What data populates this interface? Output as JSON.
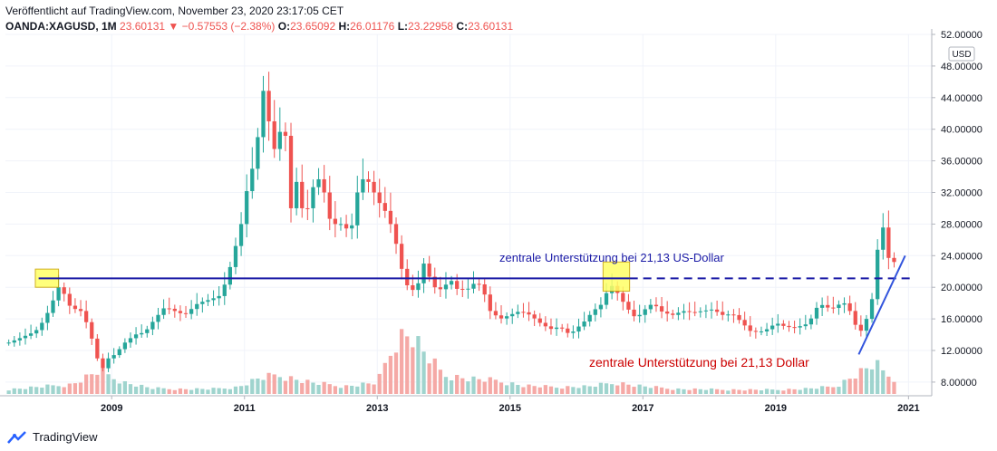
{
  "header": {
    "published": "Veröffentlicht auf TradingView.com, November 23, 2020 23:17:05 CET",
    "symbol": "OANDA:XAGUSD, 1M",
    "last": "23.60131",
    "change": "−0.57553 (−2.38%)",
    "o_label": "O:",
    "o_value": "23.65092",
    "h_label": "H:",
    "h_value": "26.01176",
    "l_label": "L:",
    "l_value": "23.22958",
    "c_label": "C:",
    "c_value": "23.60131"
  },
  "footer": {
    "brand": "TradingView",
    "logo_icon": "tradingview-logo-icon"
  },
  "colors": {
    "up": "#26a69a",
    "down": "#ef5350",
    "up_vol": "#9fd4ce",
    "down_vol": "#f5a9a6",
    "line": "#1a1aa6",
    "highlight": "#ffff66",
    "annotation_red": "#cc0000"
  },
  "chart_data": {
    "type": "candlestick",
    "interval": "1M",
    "symbol": "OANDA:XAGUSD",
    "currency": "USD",
    "ylim": [
      6.5,
      52
    ],
    "y_ticks": [
      "8.00000",
      "12.00000",
      "16.00000",
      "20.00000",
      "24.00000",
      "28.00000",
      "32.00000",
      "36.00000",
      "40.00000",
      "44.00000",
      "48.00000",
      "52.00000"
    ],
    "x_ticks": [
      "2009",
      "2011",
      "2013",
      "2015",
      "2017",
      "2019",
      "2021"
    ],
    "x_range": [
      2007.4,
      2021.35
    ],
    "price_path": [
      [
        2007.45,
        13
      ],
      [
        2007.6,
        13.5
      ],
      [
        2007.85,
        14.4
      ],
      [
        2007.95,
        15.5
      ],
      [
        2008.05,
        17
      ],
      [
        2008.2,
        20
      ],
      [
        2008.3,
        19
      ],
      [
        2008.4,
        17
      ],
      [
        2008.5,
        17.5
      ],
      [
        2008.6,
        16
      ],
      [
        2008.7,
        13.5
      ],
      [
        2008.8,
        10.5
      ],
      [
        2008.85,
        9.5
      ],
      [
        2008.95,
        11
      ],
      [
        2009.05,
        11.5
      ],
      [
        2009.2,
        13
      ],
      [
        2009.35,
        14
      ],
      [
        2009.5,
        14.3
      ],
      [
        2009.65,
        16
      ],
      [
        2009.8,
        17.5
      ],
      [
        2009.95,
        17
      ],
      [
        2010.1,
        16.5
      ],
      [
        2010.3,
        18
      ],
      [
        2010.5,
        18.5
      ],
      [
        2010.65,
        19
      ],
      [
        2010.8,
        23
      ],
      [
        2010.95,
        28
      ],
      [
        2011.05,
        33
      ],
      [
        2011.15,
        36
      ],
      [
        2011.25,
        42
      ],
      [
        2011.32,
        48
      ],
      [
        2011.4,
        36
      ],
      [
        2011.5,
        39
      ],
      [
        2011.6,
        41
      ],
      [
        2011.7,
        30
      ],
      [
        2011.8,
        34
      ],
      [
        2011.9,
        28
      ],
      [
        2012.0,
        32
      ],
      [
        2012.1,
        34
      ],
      [
        2012.2,
        32
      ],
      [
        2012.3,
        28
      ],
      [
        2012.45,
        28
      ],
      [
        2012.6,
        27
      ],
      [
        2012.7,
        32
      ],
      [
        2012.8,
        34
      ],
      [
        2012.9,
        33
      ],
      [
        2013.0,
        31
      ],
      [
        2013.1,
        30
      ],
      [
        2013.2,
        28
      ],
      [
        2013.3,
        25
      ],
      [
        2013.4,
        21
      ],
      [
        2013.5,
        19.5
      ],
      [
        2013.6,
        20
      ],
      [
        2013.7,
        23
      ],
      [
        2013.8,
        21
      ],
      [
        2013.9,
        19.5
      ],
      [
        2014.0,
        20
      ],
      [
        2014.1,
        21
      ],
      [
        2014.2,
        19.8
      ],
      [
        2014.35,
        19.7
      ],
      [
        2014.5,
        20.8
      ],
      [
        2014.6,
        19.5
      ],
      [
        2014.7,
        17
      ],
      [
        2014.85,
        16
      ],
      [
        2015.0,
        16.5
      ],
      [
        2015.15,
        17
      ],
      [
        2015.3,
        16.5
      ],
      [
        2015.45,
        15.5
      ],
      [
        2015.6,
        14.7
      ],
      [
        2015.75,
        15
      ],
      [
        2015.9,
        14
      ],
      [
        2016.0,
        14.8
      ],
      [
        2016.1,
        15.5
      ],
      [
        2016.25,
        17
      ],
      [
        2016.4,
        18
      ],
      [
        2016.5,
        20.5
      ],
      [
        2016.6,
        19.5
      ],
      [
        2016.75,
        17.5
      ],
      [
        2016.9,
        16
      ],
      [
        2017.0,
        17
      ],
      [
        2017.15,
        18
      ],
      [
        2017.3,
        16.8
      ],
      [
        2017.45,
        16.5
      ],
      [
        2017.6,
        17
      ],
      [
        2017.75,
        16.8
      ],
      [
        2017.9,
        17
      ],
      [
        2018.05,
        17.2
      ],
      [
        2018.2,
        16.5
      ],
      [
        2018.35,
        16.6
      ],
      [
        2018.5,
        15.5
      ],
      [
        2018.6,
        14.5
      ],
      [
        2018.75,
        14.3
      ],
      [
        2018.9,
        14.8
      ],
      [
        2019.0,
        15.5
      ],
      [
        2019.15,
        15
      ],
      [
        2019.3,
        14.9
      ],
      [
        2019.45,
        15.3
      ],
      [
        2019.55,
        16.2
      ],
      [
        2019.65,
        18
      ],
      [
        2019.75,
        17.5
      ],
      [
        2019.85,
        17.3
      ],
      [
        2019.95,
        17.8
      ],
      [
        2020.05,
        18
      ],
      [
        2020.15,
        16.5
      ],
      [
        2020.25,
        14
      ],
      [
        2020.35,
        15.5
      ],
      [
        2020.45,
        18.5
      ],
      [
        2020.52,
        24
      ],
      [
        2020.6,
        28.5
      ],
      [
        2020.68,
        24
      ],
      [
        2020.75,
        23
      ],
      [
        2020.85,
        23.6
      ]
    ],
    "volume_path": [
      [
        2007.45,
        1.2
      ],
      [
        2008.0,
        2
      ],
      [
        2008.4,
        2.5
      ],
      [
        2008.8,
        6
      ],
      [
        2009.2,
        3
      ],
      [
        2009.6,
        1.5
      ],
      [
        2010.0,
        1.3
      ],
      [
        2010.5,
        1.3
      ],
      [
        2010.9,
        1.8
      ],
      [
        2011.2,
        4
      ],
      [
        2011.5,
        5
      ],
      [
        2012.0,
        3
      ],
      [
        2012.5,
        2
      ],
      [
        2013.0,
        3
      ],
      [
        2013.3,
        15
      ],
      [
        2013.5,
        16
      ],
      [
        2013.7,
        11
      ],
      [
        2014.0,
        5
      ],
      [
        2014.4,
        4
      ],
      [
        2014.8,
        3.5
      ],
      [
        2015.2,
        2.2
      ],
      [
        2015.7,
        1.8
      ],
      [
        2016.2,
        2
      ],
      [
        2016.6,
        3
      ],
      [
        2017.0,
        2
      ],
      [
        2017.5,
        1.3
      ],
      [
        2018.0,
        1.2
      ],
      [
        2018.5,
        1.1
      ],
      [
        2019.0,
        1.1
      ],
      [
        2019.5,
        1.4
      ],
      [
        2019.9,
        2
      ],
      [
        2020.2,
        5
      ],
      [
        2020.5,
        8
      ],
      [
        2020.6,
        6
      ],
      [
        2020.85,
        3.5
      ]
    ],
    "horizontal_line_value": 21.13,
    "horizontal_line_solid_until": 2016.8,
    "horizontal_line_start": 2007.9,
    "highlight_boxes": [
      {
        "x_start": 2007.85,
        "x_end": 2008.2,
        "y_low": 20.0,
        "y_high": 22.3
      },
      {
        "x_start": 2016.4,
        "x_end": 2016.8,
        "y_low": 19.5,
        "y_high": 23.2
      }
    ],
    "trendline": [
      [
        2020.25,
        11.5
      ],
      [
        2020.95,
        24
      ]
    ],
    "annotation_blue": "zentrale Unterstützung bei 21,13 US-Dollar",
    "annotation_red": "zentrale Unterstützung bei 21,13 Dollar",
    "usd_badge": "USD"
  }
}
